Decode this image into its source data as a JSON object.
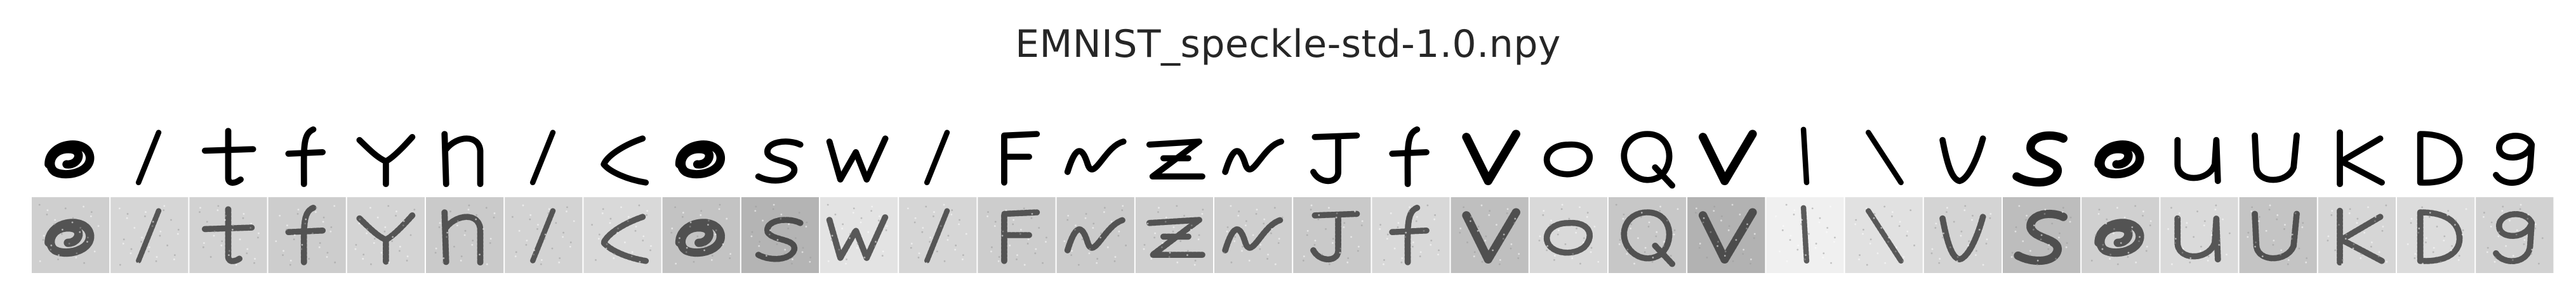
{
  "figure": {
    "title": "EMNIST_speckle-std-1.0.npy",
    "columns": 32,
    "rows": [
      "clean",
      "noisy"
    ]
  },
  "samples": [
    {
      "char": "e",
      "noise_gray": "#cfcfcf"
    },
    {
      "char": "/",
      "noise_gray": "#d6d6d6"
    },
    {
      "char": "t",
      "noise_gray": "#d2d2d2"
    },
    {
      "char": "f",
      "noise_gray": "#cdcdcd"
    },
    {
      "char": "Y",
      "noise_gray": "#d4d4d4"
    },
    {
      "char": "n",
      "noise_gray": "#cacaca"
    },
    {
      "char": "/",
      "noise_gray": "#d3d3d3"
    },
    {
      "char": "c",
      "noise_gray": "#d9d9d9"
    },
    {
      "char": "e",
      "noise_gray": "#c3c3c3"
    },
    {
      "char": "s",
      "noise_gray": "#b4b4b4"
    },
    {
      "char": "W",
      "noise_gray": "#e3e3e3"
    },
    {
      "char": "/",
      "noise_gray": "#d6d6d6"
    },
    {
      "char": "F",
      "noise_gray": "#cdcdcd"
    },
    {
      "char": "N",
      "noise_gray": "#cbcbcb"
    },
    {
      "char": "Z",
      "noise_gray": "#d0d0d0"
    },
    {
      "char": "N",
      "noise_gray": "#cfcfcf"
    },
    {
      "char": "J",
      "noise_gray": "#c9c9c9"
    },
    {
      "char": "f",
      "noise_gray": "#d8d8d8"
    },
    {
      "char": "V",
      "noise_gray": "#bfbfbf"
    },
    {
      "char": "o",
      "noise_gray": "#d9d9d9"
    },
    {
      "char": "Q",
      "noise_gray": "#c7c7c7"
    },
    {
      "char": "V",
      "noise_gray": "#b2b2b2"
    },
    {
      "char": "l",
      "noise_gray": "#f0f0f0"
    },
    {
      "char": "\\",
      "noise_gray": "#e1e1e1"
    },
    {
      "char": "v",
      "noise_gray": "#d4d4d4"
    },
    {
      "char": "S",
      "noise_gray": "#bdbdbd"
    },
    {
      "char": "e",
      "noise_gray": "#d0d0d0"
    },
    {
      "char": "u",
      "noise_gray": "#dadada"
    },
    {
      "char": "U",
      "noise_gray": "#c4c4c4"
    },
    {
      "char": "K",
      "noise_gray": "#d6d6d6"
    },
    {
      "char": "D",
      "noise_gray": "#dcdcdc"
    },
    {
      "char": "g",
      "noise_gray": "#d2d2d2"
    }
  ],
  "colors": {
    "background": "#ffffff",
    "ink": "#000000",
    "title": "#262626",
    "noise_ink": "#2a2a2a",
    "speckle_light": "#f2f2f2"
  }
}
